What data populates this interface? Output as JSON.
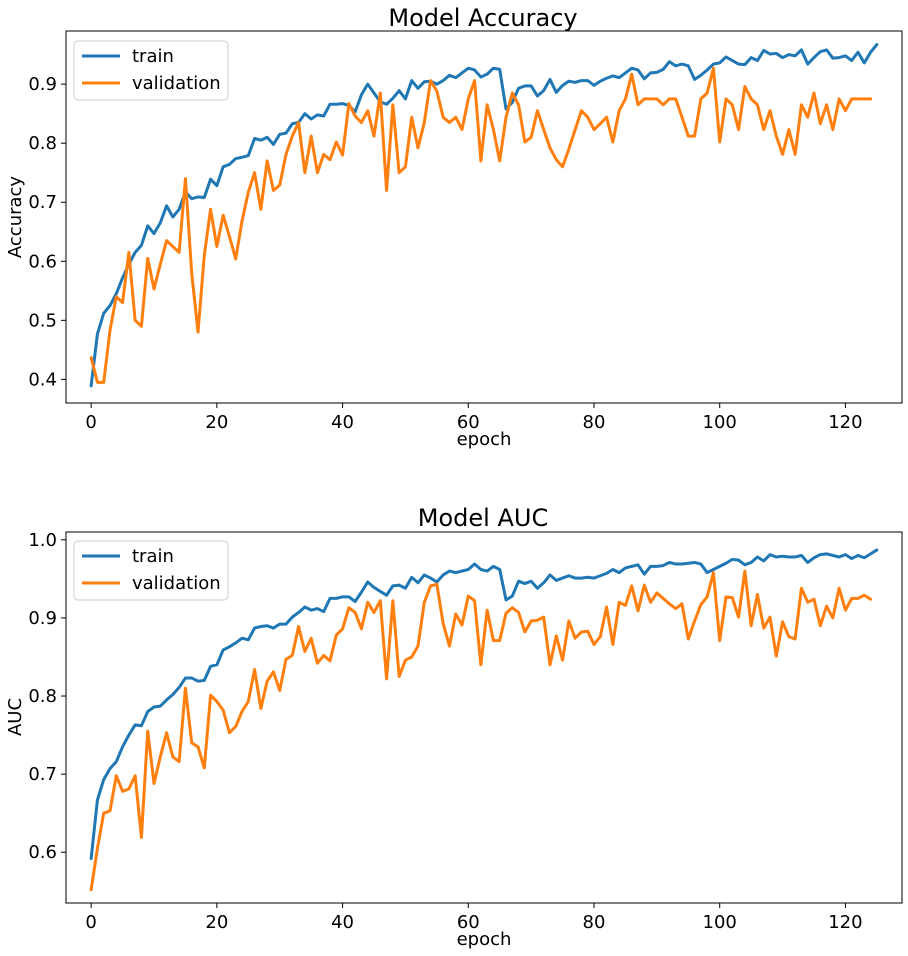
{
  "chart_data": [
    {
      "type": "line",
      "title": "Model Accuracy",
      "xlabel": "epoch",
      "ylabel": "Accuracy",
      "xlim": [
        -4,
        129
      ],
      "ylim": [
        0.36,
        0.99
      ],
      "xticks": [
        0,
        20,
        40,
        60,
        80,
        100,
        120
      ],
      "yticks": [
        0.4,
        0.5,
        0.6,
        0.7,
        0.8,
        0.9
      ],
      "grid": false,
      "legend": "top-left",
      "series": [
        {
          "name": "train",
          "color": "#1f77b4",
          "values": [
            0.389,
            0.477,
            0.512,
            0.525,
            0.545,
            0.572,
            0.595,
            0.615,
            0.627,
            0.66,
            0.647,
            0.665,
            0.694,
            0.675,
            0.688,
            0.717,
            0.706,
            0.709,
            0.708,
            0.739,
            0.728,
            0.76,
            0.764,
            0.774,
            0.776,
            0.779,
            0.808,
            0.805,
            0.81,
            0.798,
            0.815,
            0.817,
            0.833,
            0.835,
            0.85,
            0.841,
            0.848,
            0.846,
            0.866,
            0.866,
            0.867,
            0.864,
            0.853,
            0.882,
            0.9,
            0.885,
            0.87,
            0.866,
            0.876,
            0.889,
            0.875,
            0.906,
            0.893,
            0.904,
            0.905,
            0.9,
            0.906,
            0.915,
            0.911,
            0.919,
            0.927,
            0.924,
            0.912,
            0.917,
            0.927,
            0.925,
            0.858,
            0.869,
            0.893,
            0.897,
            0.897,
            0.88,
            0.889,
            0.908,
            0.886,
            0.898,
            0.905,
            0.903,
            0.906,
            0.906,
            0.898,
            0.905,
            0.91,
            0.914,
            0.911,
            0.919,
            0.927,
            0.924,
            0.909,
            0.919,
            0.92,
            0.925,
            0.938,
            0.931,
            0.934,
            0.931,
            0.908,
            0.915,
            0.924,
            0.934,
            0.936,
            0.946,
            0.94,
            0.934,
            0.933,
            0.945,
            0.94,
            0.957,
            0.951,
            0.952,
            0.945,
            0.95,
            0.948,
            0.958,
            0.934,
            0.945,
            0.955,
            0.958,
            0.944,
            0.945,
            0.948,
            0.94,
            0.954,
            0.936,
            0.954,
            0.967
          ]
        },
        {
          "name": "validation",
          "color": "#ff7f0e",
          "values": [
            0.437,
            0.395,
            0.395,
            0.483,
            0.54,
            0.53,
            0.615,
            0.5,
            0.49,
            0.605,
            0.553,
            0.595,
            0.635,
            0.625,
            0.615,
            0.74,
            0.58,
            0.48,
            0.61,
            0.688,
            0.625,
            0.678,
            0.642,
            0.604,
            0.668,
            0.717,
            0.75,
            0.688,
            0.77,
            0.72,
            0.729,
            0.781,
            0.812,
            0.835,
            0.75,
            0.812,
            0.75,
            0.781,
            0.772,
            0.802,
            0.78,
            0.867,
            0.846,
            0.835,
            0.855,
            0.812,
            0.885,
            0.72,
            0.865,
            0.75,
            0.76,
            0.844,
            0.792,
            0.835,
            0.906,
            0.888,
            0.844,
            0.835,
            0.844,
            0.823,
            0.875,
            0.906,
            0.77,
            0.865,
            0.823,
            0.77,
            0.844,
            0.885,
            0.865,
            0.802,
            0.81,
            0.855,
            0.823,
            0.792,
            0.772,
            0.76,
            0.79,
            0.823,
            0.855,
            0.844,
            0.823,
            0.833,
            0.844,
            0.802,
            0.855,
            0.875,
            0.917,
            0.865,
            0.875,
            0.875,
            0.875,
            0.865,
            0.875,
            0.875,
            0.844,
            0.812,
            0.812,
            0.875,
            0.885,
            0.927,
            0.802,
            0.875,
            0.865,
            0.823,
            0.896,
            0.875,
            0.865,
            0.823,
            0.855,
            0.812,
            0.781,
            0.823,
            0.781,
            0.865,
            0.844,
            0.885,
            0.833,
            0.865,
            0.823,
            0.875,
            0.855,
            0.875,
            0.875,
            0.875,
            0.875
          ]
        }
      ]
    },
    {
      "type": "line",
      "title": "Model AUC",
      "xlabel": "epoch",
      "ylabel": "AUC",
      "xlim": [
        -4,
        129
      ],
      "ylim": [
        0.535,
        1.01
      ],
      "xticks": [
        0,
        20,
        40,
        60,
        80,
        100,
        120
      ],
      "yticks": [
        0.6,
        0.7,
        0.8,
        0.9,
        1.0
      ],
      "grid": false,
      "legend": "top-left",
      "series": [
        {
          "name": "train",
          "color": "#1f77b4",
          "values": [
            0.592,
            0.667,
            0.693,
            0.707,
            0.716,
            0.735,
            0.75,
            0.763,
            0.762,
            0.78,
            0.786,
            0.787,
            0.795,
            0.802,
            0.811,
            0.823,
            0.823,
            0.819,
            0.82,
            0.838,
            0.84,
            0.859,
            0.863,
            0.868,
            0.874,
            0.872,
            0.887,
            0.889,
            0.89,
            0.887,
            0.892,
            0.892,
            0.901,
            0.907,
            0.914,
            0.91,
            0.912,
            0.908,
            0.925,
            0.925,
            0.927,
            0.927,
            0.921,
            0.933,
            0.946,
            0.939,
            0.934,
            0.929,
            0.941,
            0.942,
            0.938,
            0.952,
            0.945,
            0.955,
            0.951,
            0.946,
            0.955,
            0.96,
            0.958,
            0.96,
            0.962,
            0.969,
            0.962,
            0.96,
            0.966,
            0.962,
            0.923,
            0.928,
            0.947,
            0.944,
            0.947,
            0.938,
            0.945,
            0.955,
            0.948,
            0.951,
            0.954,
            0.951,
            0.951,
            0.952,
            0.951,
            0.954,
            0.957,
            0.962,
            0.958,
            0.964,
            0.966,
            0.968,
            0.956,
            0.966,
            0.966,
            0.967,
            0.971,
            0.969,
            0.969,
            0.97,
            0.971,
            0.969,
            0.958,
            0.962,
            0.966,
            0.97,
            0.975,
            0.974,
            0.968,
            0.971,
            0.978,
            0.973,
            0.981,
            0.978,
            0.979,
            0.978,
            0.978,
            0.98,
            0.971,
            0.977,
            0.981,
            0.982,
            0.98,
            0.978,
            0.981,
            0.976,
            0.98,
            0.977,
            0.982,
            0.987
          ]
        },
        {
          "name": "validation",
          "color": "#ff7f0e",
          "values": [
            0.552,
            0.605,
            0.65,
            0.653,
            0.698,
            0.678,
            0.681,
            0.698,
            0.619,
            0.755,
            0.688,
            0.722,
            0.753,
            0.722,
            0.716,
            0.81,
            0.74,
            0.735,
            0.708,
            0.801,
            0.793,
            0.782,
            0.753,
            0.761,
            0.78,
            0.793,
            0.834,
            0.784,
            0.819,
            0.831,
            0.807,
            0.847,
            0.852,
            0.889,
            0.857,
            0.874,
            0.842,
            0.852,
            0.845,
            0.878,
            0.886,
            0.913,
            0.907,
            0.886,
            0.92,
            0.907,
            0.922,
            0.822,
            0.922,
            0.825,
            0.846,
            0.85,
            0.864,
            0.92,
            0.941,
            0.943,
            0.893,
            0.864,
            0.905,
            0.891,
            0.928,
            0.922,
            0.84,
            0.91,
            0.871,
            0.871,
            0.906,
            0.913,
            0.907,
            0.882,
            0.896,
            0.897,
            0.901,
            0.84,
            0.877,
            0.846,
            0.896,
            0.874,
            0.882,
            0.883,
            0.866,
            0.876,
            0.914,
            0.866,
            0.92,
            0.916,
            0.941,
            0.909,
            0.942,
            0.92,
            0.932,
            0.925,
            0.918,
            0.912,
            0.918,
            0.873,
            0.896,
            0.917,
            0.927,
            0.958,
            0.871,
            0.927,
            0.926,
            0.901,
            0.96,
            0.89,
            0.93,
            0.887,
            0.901,
            0.851,
            0.895,
            0.876,
            0.873,
            0.938,
            0.92,
            0.924,
            0.89,
            0.915,
            0.9,
            0.938,
            0.91,
            0.925,
            0.925,
            0.929,
            0.924
          ]
        }
      ]
    }
  ]
}
